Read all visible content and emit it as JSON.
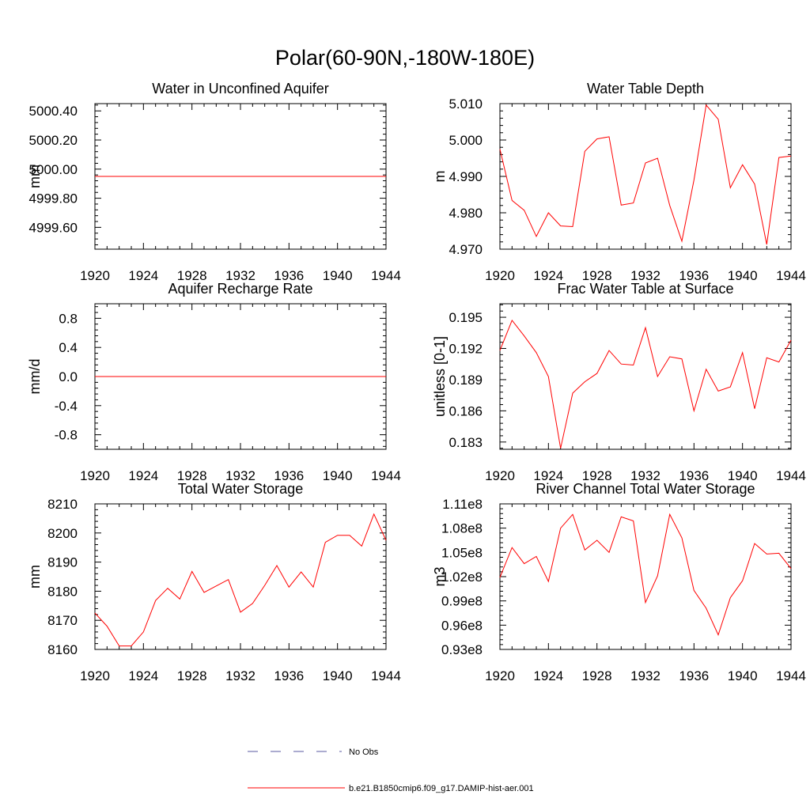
{
  "figure": {
    "title": "Polar(60-90N,-180W-180E)"
  },
  "colors": {
    "model": "#ff0000",
    "obs": "#5a5aa0",
    "axis": "#000000"
  },
  "legend": {
    "obs_label": "No Obs",
    "model_label": "b.e21.B1850cmip6.f09_g17.DAMIP-hist-aer.001",
    "placement": "bottom-center"
  },
  "chart_data": [
    {
      "type": "line",
      "title": "Water in Unconfined Aquifer",
      "ylabel": "mm",
      "xlim": [
        1920,
        1944
      ],
      "ylim": [
        4999.45,
        5000.45
      ],
      "xticks": [
        "1920",
        "1924",
        "1928",
        "1932",
        "1936",
        "1940",
        "1944"
      ],
      "yticks": [
        {
          "v": 5000.4,
          "label": "5000.40"
        },
        {
          "v": 5000.2,
          "label": "5000.20"
        },
        {
          "v": 5000.0,
          "label": "5000.00"
        },
        {
          "v": 4999.8,
          "label": "4999.80"
        },
        {
          "v": 4999.6,
          "label": "4999.60"
        }
      ],
      "x": [
        1920,
        1921,
        1922,
        1923,
        1924,
        1925,
        1926,
        1927,
        1928,
        1929,
        1930,
        1931,
        1932,
        1933,
        1934,
        1935,
        1936,
        1937,
        1938,
        1939,
        1940,
        1941,
        1942,
        1943,
        1944
      ],
      "series": [
        {
          "values": [
            4999.95,
            4999.95,
            4999.95,
            4999.95,
            4999.95,
            4999.95,
            4999.95,
            4999.95,
            4999.95,
            4999.95,
            4999.95,
            4999.95,
            4999.95,
            4999.95,
            4999.95,
            4999.95,
            4999.95,
            4999.95,
            4999.95,
            4999.95,
            4999.95,
            4999.95,
            4999.95,
            4999.95,
            4999.95
          ]
        }
      ]
    },
    {
      "type": "line",
      "title": "Water Table Depth",
      "ylabel": "m",
      "xlim": [
        1920,
        1944
      ],
      "ylim": [
        4.97,
        5.01
      ],
      "xticks": [
        "1920",
        "1924",
        "1928",
        "1932",
        "1936",
        "1940",
        "1944"
      ],
      "yticks": [
        {
          "v": 5.01,
          "label": "5.010"
        },
        {
          "v": 5.0,
          "label": "5.000"
        },
        {
          "v": 4.99,
          "label": "4.990"
        },
        {
          "v": 4.98,
          "label": "4.980"
        },
        {
          "v": 4.97,
          "label": "4.970"
        }
      ],
      "x": [
        1920,
        1921,
        1922,
        1923,
        1924,
        1925,
        1926,
        1927,
        1928,
        1929,
        1930,
        1931,
        1932,
        1933,
        1934,
        1935,
        1936,
        1937,
        1938,
        1939,
        1940,
        1941,
        1942,
        1943,
        1944
      ],
      "series": [
        {
          "values": [
            4.9975,
            4.9834,
            4.9807,
            4.9735,
            4.98,
            4.9764,
            4.9762,
            4.9969,
            5.0003,
            5.0009,
            4.9821,
            4.9827,
            4.9937,
            4.995,
            4.982,
            4.9722,
            4.989,
            5.0096,
            5.0057,
            4.9869,
            4.9932,
            4.9879,
            4.9713,
            4.9952,
            4.9956
          ]
        }
      ]
    },
    {
      "type": "line",
      "title": "Aquifer Recharge Rate",
      "ylabel": "mm/d",
      "xlim": [
        1920,
        1944
      ],
      "ylim": [
        -1.0,
        1.0
      ],
      "xticks": [
        "1920",
        "1924",
        "1928",
        "1932",
        "1936",
        "1940",
        "1944"
      ],
      "yticks": [
        {
          "v": 0.8,
          "label": "0.8"
        },
        {
          "v": 0.4,
          "label": "0.4"
        },
        {
          "v": 0.0,
          "label": "0.0"
        },
        {
          "v": -0.4,
          "label": "-0.4"
        },
        {
          "v": -0.8,
          "label": "-0.8"
        }
      ],
      "x": [
        1920,
        1921,
        1922,
        1923,
        1924,
        1925,
        1926,
        1927,
        1928,
        1929,
        1930,
        1931,
        1932,
        1933,
        1934,
        1935,
        1936,
        1937,
        1938,
        1939,
        1940,
        1941,
        1942,
        1943,
        1944
      ],
      "series": [
        {
          "values": [
            0,
            0,
            0,
            0,
            0,
            0,
            0,
            0,
            0,
            0,
            0,
            0,
            0,
            0,
            0,
            0,
            0,
            0,
            0,
            0,
            0,
            0,
            0,
            0,
            0
          ]
        }
      ]
    },
    {
      "type": "line",
      "title": "Frac Water Table at Surface",
      "ylabel": "unitless [0-1]",
      "xlim": [
        1920,
        1944
      ],
      "ylim": [
        0.1823,
        0.1963
      ],
      "xticks": [
        "1920",
        "1924",
        "1928",
        "1932",
        "1936",
        "1940",
        "1944"
      ],
      "yticks": [
        {
          "v": 0.195,
          "label": "0.195"
        },
        {
          "v": 0.192,
          "label": "0.192"
        },
        {
          "v": 0.189,
          "label": "0.189"
        },
        {
          "v": 0.186,
          "label": "0.186"
        },
        {
          "v": 0.183,
          "label": "0.183"
        }
      ],
      "x": [
        1920,
        1921,
        1922,
        1923,
        1924,
        1925,
        1926,
        1927,
        1928,
        1929,
        1930,
        1931,
        1932,
        1933,
        1934,
        1935,
        1936,
        1937,
        1938,
        1939,
        1940,
        1941,
        1942,
        1943,
        1944
      ],
      "series": [
        {
          "values": [
            0.1918,
            0.1947,
            0.1932,
            0.1916,
            0.1893,
            0.1824,
            0.1877,
            0.1888,
            0.1896,
            0.1918,
            0.1905,
            0.1904,
            0.194,
            0.1893,
            0.1912,
            0.191,
            0.186,
            0.19,
            0.1879,
            0.1883,
            0.1916,
            0.1862,
            0.1911,
            0.1907,
            0.1928
          ]
        }
      ]
    },
    {
      "type": "line",
      "title": "Total Water Storage",
      "ylabel": "mm",
      "xlim": [
        1920,
        1944
      ],
      "ylim": [
        8160,
        8210
      ],
      "xticks": [
        "1920",
        "1924",
        "1928",
        "1932",
        "1936",
        "1940",
        "1944"
      ],
      "yticks": [
        {
          "v": 8210,
          "label": "8210"
        },
        {
          "v": 8200,
          "label": "8200"
        },
        {
          "v": 8190,
          "label": "8190"
        },
        {
          "v": 8180,
          "label": "8180"
        },
        {
          "v": 8170,
          "label": "8170"
        },
        {
          "v": 8160,
          "label": "8160"
        }
      ],
      "x": [
        1920,
        1921,
        1922,
        1923,
        1924,
        1925,
        1926,
        1927,
        1928,
        1929,
        1930,
        1931,
        1932,
        1933,
        1934,
        1935,
        1936,
        1937,
        1938,
        1939,
        1940,
        1941,
        1942,
        1943,
        1944
      ],
      "series": [
        {
          "values": [
            8172.5,
            8168.0,
            8161.2,
            8161.2,
            8166.0,
            8176.8,
            8181.0,
            8177.3,
            8186.8,
            8179.6,
            8181.8,
            8184.0,
            8172.8,
            8175.8,
            8182.0,
            8188.8,
            8181.4,
            8186.6,
            8181.4,
            8196.8,
            8199.2,
            8199.2,
            8195.5,
            8206.5,
            8197.5
          ]
        }
      ]
    },
    {
      "type": "line",
      "title": "River Channel Total Water Storage",
      "ylabel": "m3",
      "xlim": [
        1920,
        1944
      ],
      "ylim": [
        93000000.0,
        111000000.0
      ],
      "xticks": [
        "1920",
        "1924",
        "1928",
        "1932",
        "1936",
        "1940",
        "1944"
      ],
      "yticks": [
        {
          "v": 111000000.0,
          "label": "1.11e8"
        },
        {
          "v": 108000000.0,
          "label": "1.08e8"
        },
        {
          "v": 105000000.0,
          "label": "1.05e8"
        },
        {
          "v": 102000000.0,
          "label": "1.02e8"
        },
        {
          "v": 99000000.0,
          "label": "0.99e8"
        },
        {
          "v": 96000000.0,
          "label": "0.96e8"
        },
        {
          "v": 93000000.0,
          "label": "0.93e8"
        }
      ],
      "x": [
        1920,
        1921,
        1922,
        1923,
        1924,
        1925,
        1926,
        1927,
        1928,
        1929,
        1930,
        1931,
        1932,
        1933,
        1934,
        1935,
        1936,
        1937,
        1938,
        1939,
        1940,
        1941,
        1942,
        1943,
        1944
      ],
      "series": [
        {
          "values": [
            101900000.0,
            105600000.0,
            103600000.0,
            104500000.0,
            101400000.0,
            108000000.0,
            109700000.0,
            105300000.0,
            106500000.0,
            105000000.0,
            109400000.0,
            108900000.0,
            98800000.0,
            102100000.0,
            109700000.0,
            106800000.0,
            100300000.0,
            98100000.0,
            94800000.0,
            99400000.0,
            101500000.0,
            106100000.0,
            104800000.0,
            104900000.0,
            103000000.0
          ]
        }
      ]
    }
  ]
}
